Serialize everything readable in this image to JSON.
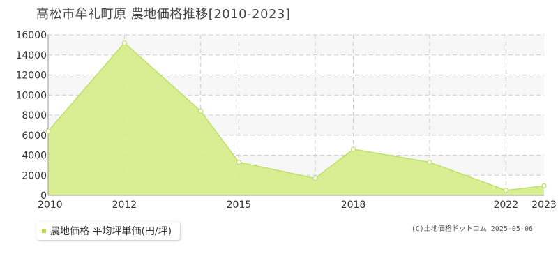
{
  "title": "高松市牟礼町原 農地価格推移[2010-2023]",
  "legend": {
    "label": "農地価格 平均坪単価(円/坪)"
  },
  "copyright": "(C)土地価格ドットコム 2025-05-06",
  "colors": {
    "fill": "#d7ec8c",
    "line": "#bde06a",
    "swatch": "#b5d94a"
  },
  "chart_data": {
    "type": "area",
    "x": [
      2010,
      2012,
      2014,
      2015,
      2017,
      2018,
      2020,
      2022,
      2023
    ],
    "series": [
      {
        "name": "農地価格 平均坪単価(円/坪)",
        "values": [
          6400,
          15200,
          8400,
          3300,
          1700,
          4600,
          3300,
          500,
          950
        ]
      }
    ],
    "xlim": [
      2010,
      2023
    ],
    "ylim": [
      0,
      16000
    ],
    "x_tick_labels": [
      "2010",
      "2012",
      "2015",
      "2018",
      "2022",
      "2023"
    ],
    "y_tick_labels": [
      "0",
      "2000",
      "4000",
      "6000",
      "8000",
      "10000",
      "12000",
      "14000",
      "16000"
    ],
    "grid": true,
    "legend_position": "bottom-left"
  }
}
